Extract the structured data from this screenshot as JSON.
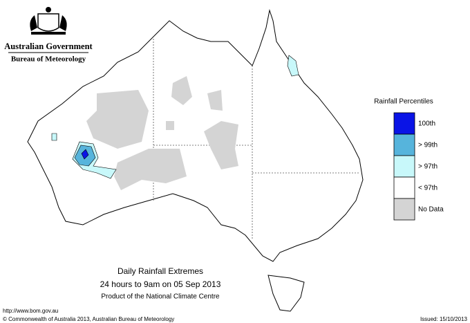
{
  "header": {
    "title": "Australian Government",
    "subtitle": "Bureau of Meteorology"
  },
  "legend": {
    "title": "Rainfall Percentiles",
    "items": [
      {
        "label": "100th",
        "color": "#0a14e6"
      },
      {
        "label": "> 99th",
        "color": "#56b4dc"
      },
      {
        "label": "> 97th",
        "color": "#c8f8fa"
      },
      {
        "label": "< 97th",
        "color": "#ffffff"
      },
      {
        "label": "No Data",
        "color": "#d4d4d4"
      }
    ]
  },
  "caption": {
    "title": "Daily Rainfall Extremes",
    "period": "24 hours to 9am on 05 Sep 2013",
    "product": "Product of the National Climate Centre"
  },
  "footer": {
    "url": "http://www.bom.gov.au",
    "copyright": "© Commonwealth of Australia 2013, Australian Bureau of Meteorology",
    "issued": "Issued: 15/10/2013"
  }
}
